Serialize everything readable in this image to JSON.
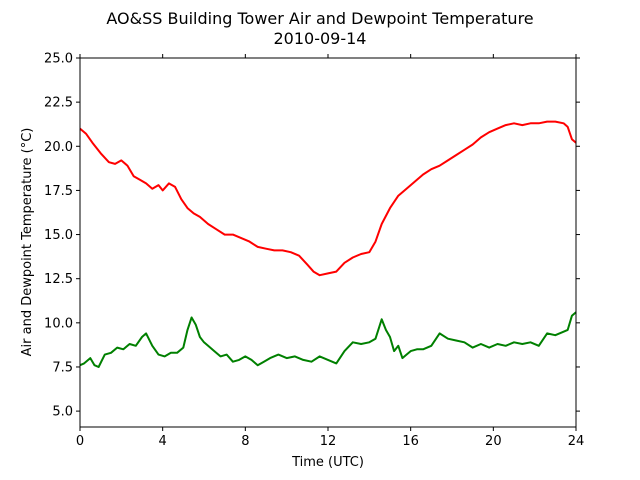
{
  "chart_data": {
    "type": "line",
    "title": "AO&SS Building Tower Air and Dewpoint Temperature",
    "subtitle": "2010-09-14",
    "xlabel": "Time (UTC)",
    "ylabel": "Air and Dewpoint Temperature (°C)",
    "xlim": [
      0,
      24
    ],
    "ylim": [
      4.1,
      25.0
    ],
    "xticks": [
      0,
      4,
      8,
      12,
      16,
      20,
      24
    ],
    "xtick_labels": [
      "0",
      "4",
      "8",
      "12",
      "16",
      "20",
      "24"
    ],
    "yticks": [
      5.0,
      7.5,
      10.0,
      12.5,
      15.0,
      17.5,
      20.0,
      22.5,
      25.0
    ],
    "ytick_labels": [
      "5.0",
      "7.5",
      "10.0",
      "12.5",
      "15.0",
      "17.5",
      "20.0",
      "22.5",
      "25.0"
    ],
    "grid": false,
    "legend": "none",
    "series": [
      {
        "color": "#ff0000",
        "x": [
          0,
          0.3,
          0.6,
          1.0,
          1.4,
          1.7,
          2.0,
          2.3,
          2.6,
          2.9,
          3.2,
          3.5,
          3.8,
          4.0,
          4.3,
          4.6,
          4.9,
          5.2,
          5.5,
          5.8,
          6.2,
          6.6,
          7.0,
          7.4,
          7.8,
          8.2,
          8.6,
          9.0,
          9.4,
          9.8,
          10.2,
          10.6,
          11.0,
          11.3,
          11.6,
          12.0,
          12.4,
          12.8,
          13.2,
          13.6,
          14.0,
          14.3,
          14.6,
          15.0,
          15.4,
          15.8,
          16.2,
          16.6,
          17.0,
          17.4,
          17.8,
          18.2,
          18.6,
          19.0,
          19.4,
          19.8,
          20.2,
          20.6,
          21.0,
          21.4,
          21.8,
          22.2,
          22.6,
          23.0,
          23.4,
          23.6,
          23.8,
          24.0
        ],
        "y": [
          21.0,
          20.7,
          20.2,
          19.6,
          19.1,
          19.0,
          19.2,
          18.9,
          18.3,
          18.1,
          17.9,
          17.6,
          17.8,
          17.5,
          17.9,
          17.7,
          17.0,
          16.5,
          16.2,
          16.0,
          15.6,
          15.3,
          15.0,
          15.0,
          14.8,
          14.6,
          14.3,
          14.2,
          14.1,
          14.1,
          14.0,
          13.8,
          13.3,
          12.9,
          12.7,
          12.8,
          12.9,
          13.4,
          13.7,
          13.9,
          14.0,
          14.6,
          15.6,
          16.5,
          17.2,
          17.6,
          18.0,
          18.4,
          18.7,
          18.9,
          19.2,
          19.5,
          19.8,
          20.1,
          20.5,
          20.8,
          21.0,
          21.2,
          21.3,
          21.2,
          21.3,
          21.3,
          21.4,
          21.4,
          21.3,
          21.1,
          20.4,
          20.2
        ]
      },
      {
        "color": "#008000",
        "x": [
          0,
          0.2,
          0.5,
          0.7,
          0.9,
          1.2,
          1.5,
          1.8,
          2.1,
          2.4,
          2.7,
          3.0,
          3.2,
          3.5,
          3.8,
          4.1,
          4.4,
          4.7,
          5.0,
          5.2,
          5.4,
          5.6,
          5.8,
          6.0,
          6.2,
          6.5,
          6.8,
          7.1,
          7.4,
          7.7,
          8.0,
          8.3,
          8.6,
          8.9,
          9.2,
          9.6,
          10.0,
          10.4,
          10.8,
          11.2,
          11.6,
          12.0,
          12.4,
          12.8,
          13.2,
          13.6,
          14.0,
          14.3,
          14.6,
          14.8,
          15.0,
          15.2,
          15.4,
          15.6,
          15.8,
          16.0,
          16.3,
          16.6,
          17.0,
          17.4,
          17.8,
          18.2,
          18.6,
          19.0,
          19.4,
          19.8,
          20.2,
          20.6,
          21.0,
          21.4,
          21.8,
          22.2,
          22.6,
          23.0,
          23.4,
          23.6,
          23.8,
          24.0
        ],
        "y": [
          7.6,
          7.7,
          8.0,
          7.6,
          7.5,
          8.2,
          8.3,
          8.6,
          8.5,
          8.8,
          8.7,
          9.2,
          9.4,
          8.7,
          8.2,
          8.1,
          8.3,
          8.3,
          8.6,
          9.6,
          10.3,
          9.9,
          9.2,
          8.9,
          8.7,
          8.4,
          8.1,
          8.2,
          7.8,
          7.9,
          8.1,
          7.9,
          7.6,
          7.8,
          8.0,
          8.2,
          8.0,
          8.1,
          7.9,
          7.8,
          8.1,
          7.9,
          7.7,
          8.4,
          8.9,
          8.8,
          8.9,
          9.1,
          10.2,
          9.6,
          9.2,
          8.4,
          8.7,
          8.0,
          8.2,
          8.4,
          8.5,
          8.5,
          8.7,
          9.4,
          9.1,
          9.0,
          8.9,
          8.6,
          8.8,
          8.6,
          8.8,
          8.7,
          8.9,
          8.8,
          8.9,
          8.7,
          9.4,
          9.3,
          9.5,
          9.6,
          10.4,
          10.6
        ]
      }
    ]
  }
}
